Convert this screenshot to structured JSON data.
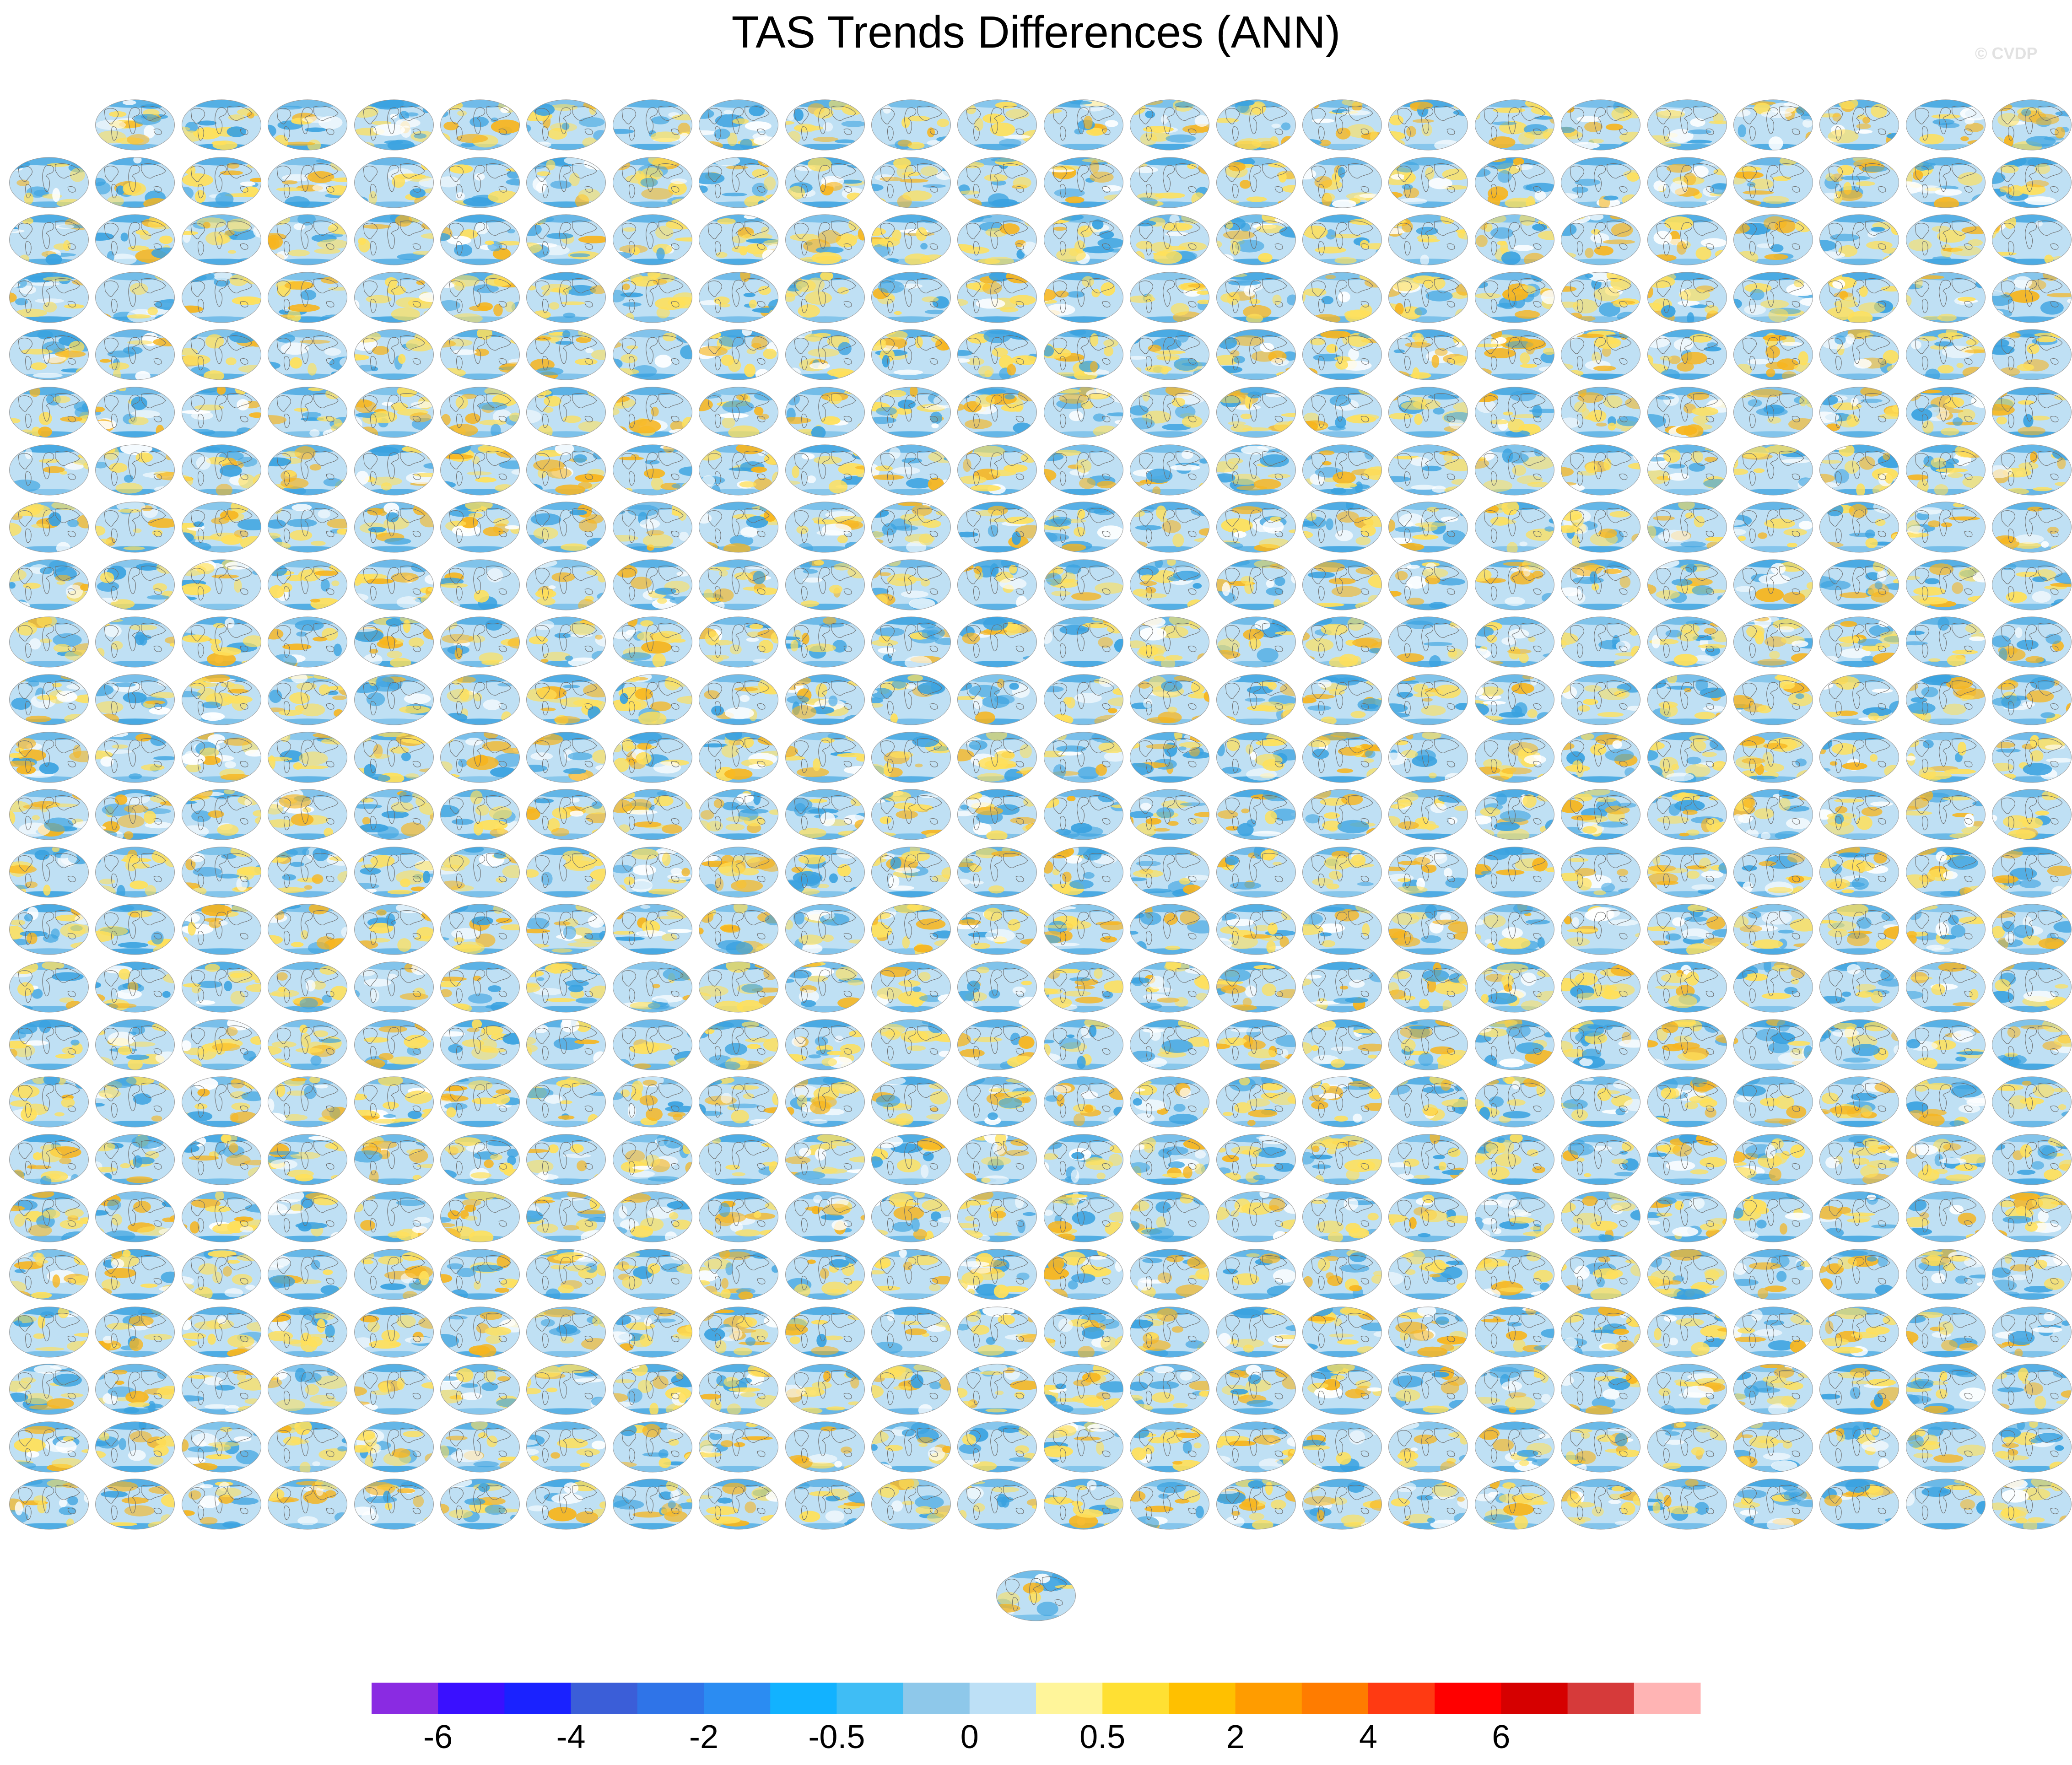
{
  "title": "TAS Trends Differences (ANN)",
  "watermark": "© CVDP",
  "chart_data": {
    "type": "heatmap",
    "title": "TAS Trends Differences (ANN)",
    "description_kind": "small multiples of global map panels",
    "layout": {
      "panel_rows": [
        23,
        24,
        24,
        24,
        24,
        24,
        24,
        24,
        24,
        24,
        24,
        24,
        24,
        24,
        24,
        24,
        24,
        24,
        24,
        24,
        24,
        24,
        24,
        24,
        24,
        1
      ],
      "first_row_starts_at_column": 2,
      "total_panels": 600
    },
    "colorbar": {
      "levels": [
        -8,
        -6,
        -5,
        -4,
        -3,
        -2,
        -1,
        -0.5,
        -0.2,
        0,
        0.2,
        0.5,
        1,
        2,
        3,
        4,
        5,
        6,
        8
      ],
      "colors": [
        "#8a2be2",
        "#3a10ff",
        "#1a22ff",
        "#3b5ed8",
        "#2f74e8",
        "#2b8cf2",
        "#12b2ff",
        "#3fbdf5",
        "#8ec8ea",
        "#bde0f6",
        "#fff59a",
        "#ffe033",
        "#ffc000",
        "#ff9c00",
        "#ff7c00",
        "#ff3a12",
        "#ff0000",
        "#d60000",
        "#d63a3a",
        "#ffb4b4"
      ],
      "tick_labels": [
        "-6",
        "-4",
        "-2",
        "-0.5",
        "0",
        "0.5",
        "2",
        "4",
        "6"
      ],
      "tick_boundary_index": [
        1,
        3,
        5,
        7,
        9,
        11,
        13,
        15,
        17
      ]
    },
    "map_palette": {
      "ocean_cool": "#bfe0f4",
      "ocean_cold": "#3aa2e0",
      "warm": "#ffe05a",
      "hot": "#f7b51e",
      "coast": "#6b6b6b"
    }
  }
}
